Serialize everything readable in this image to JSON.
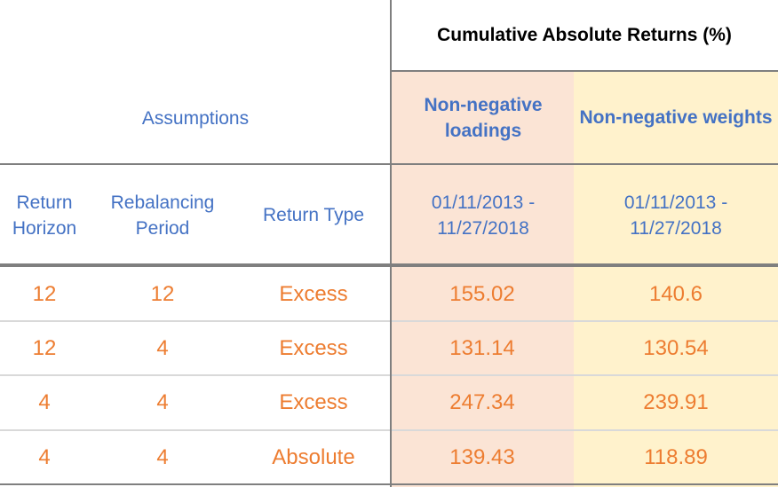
{
  "header": {
    "group_title": "Cumulative Absolute Returns (%)",
    "assumptions_label": "Assumptions",
    "col_nonneg_loadings": "Non-negative loadings",
    "col_nonneg_weights": "Non-negative weights"
  },
  "subheader": {
    "return_horizon": "Return Horizon",
    "rebalancing_period": "Rebalancing Period",
    "return_type": "Return Type",
    "loadings_period": "01/11/2013 - 11/27/2018",
    "weights_period": "01/11/2013 - 11/27/2018"
  },
  "rows": [
    {
      "horizon": "12",
      "rebalancing": "12",
      "type": "Excess",
      "loadings": "155.02",
      "weights": "140.6"
    },
    {
      "horizon": "12",
      "rebalancing": "4",
      "type": "Excess",
      "loadings": "131.14",
      "weights": "130.54"
    },
    {
      "horizon": "4",
      "rebalancing": "4",
      "type": "Excess",
      "loadings": "247.34",
      "weights": "239.91"
    },
    {
      "horizon": "4",
      "rebalancing": "4",
      "type": "Absolute",
      "loadings": "139.43",
      "weights": "118.89"
    }
  ],
  "colors": {
    "header_text": "#4472c4",
    "value_text": "#ed7d31",
    "loadings_bg": "#fbe4d5",
    "weights_bg": "#fff2cc"
  }
}
